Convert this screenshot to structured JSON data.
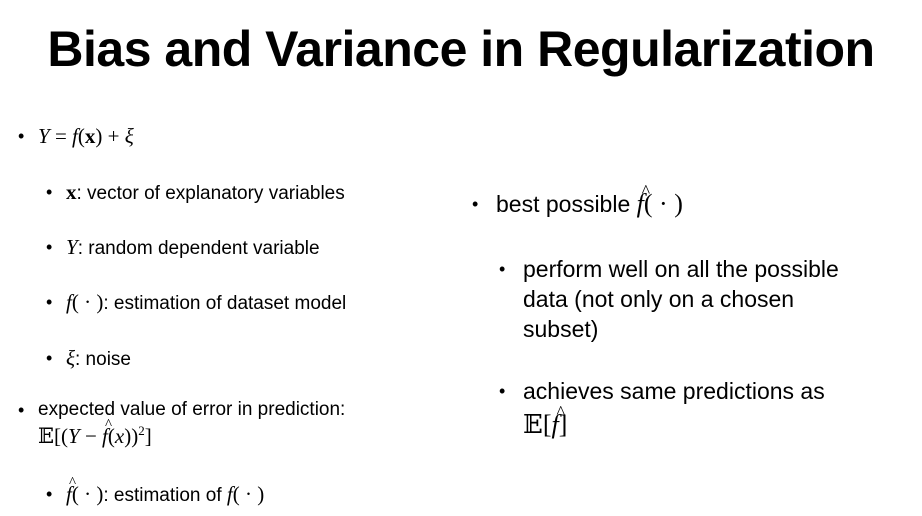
{
  "slide": {
    "title": "Bias and Variance in Regularization",
    "left": {
      "b1_text": "",
      "b1a_label": ": vector of explanatory variables",
      "b1b_label": ": random dependent variable",
      "b1c_label": ": estimation of dataset model",
      "b1d_label": ": noise",
      "b2_line1": "expected value of error in prediction:",
      "b2a_label": ": estimation of "
    },
    "right": {
      "r1_label": "best possible ",
      "r1a_line1": "perform well on all the possible",
      "r1a_line2": "data (not only on a chosen",
      "r1a_line3": "subset)",
      "r1b_line1": "achieves same predictions as"
    },
    "bullet_glyph": "•"
  }
}
